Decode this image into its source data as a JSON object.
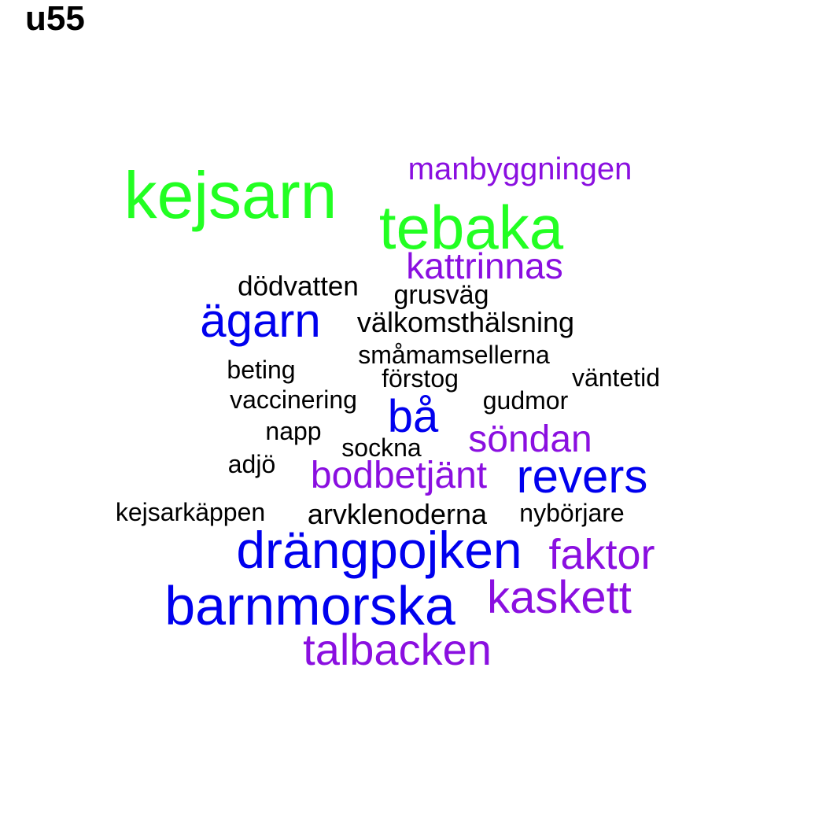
{
  "title": "u55",
  "palette": {
    "green": "#22ff22",
    "blue": "#0000ee",
    "purple": "#8a0fe0",
    "black": "#000000"
  },
  "words": [
    {
      "text": "kejsarn",
      "color": "green"
    },
    {
      "text": "tebaka",
      "color": "green"
    },
    {
      "text": "manbyggningen",
      "color": "purple"
    },
    {
      "text": "kattrinnas",
      "color": "purple"
    },
    {
      "text": "dödvatten",
      "color": "black"
    },
    {
      "text": "grusväg",
      "color": "black"
    },
    {
      "text": "ägarn",
      "color": "blue"
    },
    {
      "text": "välkomsthälsning",
      "color": "black"
    },
    {
      "text": "småmamsellerna",
      "color": "black"
    },
    {
      "text": "beting",
      "color": "black"
    },
    {
      "text": "förstog",
      "color": "black"
    },
    {
      "text": "väntetid",
      "color": "black"
    },
    {
      "text": "vaccinering",
      "color": "black"
    },
    {
      "text": "bå",
      "color": "blue"
    },
    {
      "text": "gudmor",
      "color": "black"
    },
    {
      "text": "napp",
      "color": "black"
    },
    {
      "text": "söndan",
      "color": "purple"
    },
    {
      "text": "sockna",
      "color": "black"
    },
    {
      "text": "adjö",
      "color": "black"
    },
    {
      "text": "bodbetjänt",
      "color": "purple"
    },
    {
      "text": "revers",
      "color": "blue"
    },
    {
      "text": "kejsarkäppen",
      "color": "black"
    },
    {
      "text": "arvklenoderna",
      "color": "black"
    },
    {
      "text": "nybörjare",
      "color": "black"
    },
    {
      "text": "drängpojken",
      "color": "blue"
    },
    {
      "text": "faktor",
      "color": "purple"
    },
    {
      "text": "barnmorska",
      "color": "blue"
    },
    {
      "text": "kaskett",
      "color": "purple"
    },
    {
      "text": "talbacken",
      "color": "purple"
    }
  ]
}
